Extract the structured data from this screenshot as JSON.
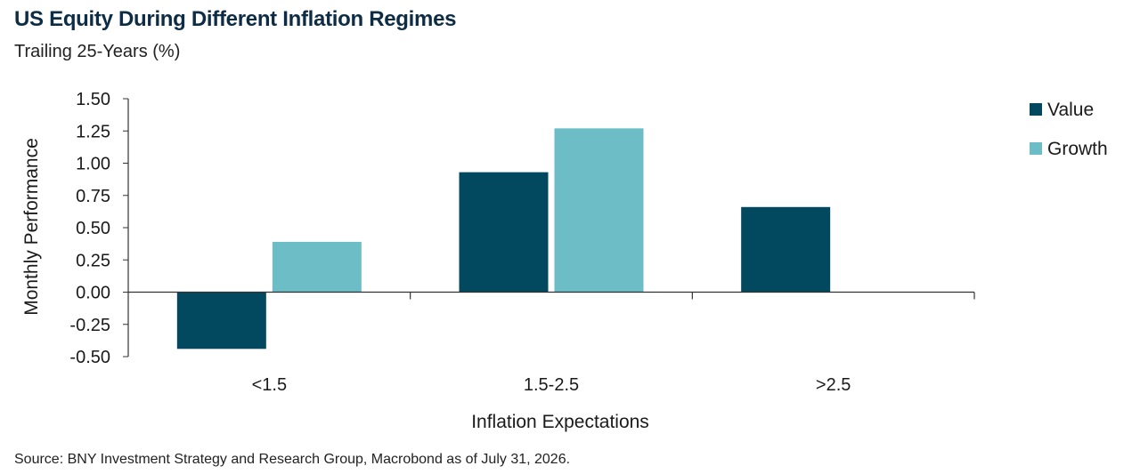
{
  "header": {
    "title": "US Equity During Different Inflation Regimes",
    "subtitle": "Trailing 25-Years (%)"
  },
  "footer": {
    "source": "Source: BNY Investment Strategy and Research Group, Macrobond as of July 31, 2026."
  },
  "colors": {
    "value": "#02485e",
    "growth": "#6cbdc6",
    "axis": "#333333"
  },
  "chart_data": {
    "type": "bar",
    "title": "US Equity During Different Inflation Regimes",
    "subtitle": "Trailing 25-Years (%)",
    "xlabel": "Inflation Expectations",
    "ylabel": "Monthly Performance",
    "categories": [
      "<1.5",
      "1.5-2.5",
      ">2.5"
    ],
    "series": [
      {
        "name": "Value",
        "values": [
          -0.44,
          0.93,
          0.66
        ]
      },
      {
        "name": "Growth",
        "values": [
          0.39,
          1.27,
          null
        ]
      }
    ],
    "ylim": [
      -0.5,
      1.5
    ],
    "yticks": [
      "1.50",
      "1.25",
      "1.00",
      "0.75",
      "0.50",
      "0.25",
      "0.00",
      "-0.25",
      "-0.50"
    ],
    "grid": false,
    "legend": "right"
  }
}
